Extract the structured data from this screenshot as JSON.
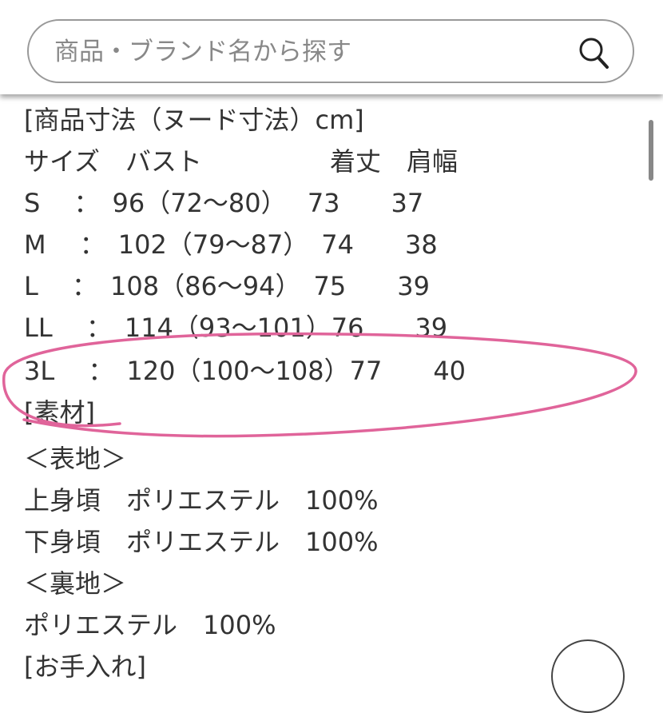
{
  "search": {
    "placeholder": "商品・ブランド名から探す",
    "icon": "search-icon"
  },
  "content": {
    "lines": [
      "[商品寸法（ヌード寸法）cm]",
      "サイズ　バスト　　　　　着丈　肩幅",
      "S　 ：　96（72〜80）　 73　　37",
      "M　 ：　102（79〜87）　74　　38",
      "L　 ：　108（86〜94）　75　　39",
      "LL　 ：　114（93〜101）76　　39",
      "3L　 ：　120（100〜108）77　　40",
      "[素材]",
      "＜表地＞",
      "上身頃　ポリエステル　100%",
      "下身頃　ポリエステル　100%",
      "＜裏地＞",
      "ポリエステル　100%",
      "[お手入れ]"
    ]
  },
  "annotation": {
    "color": "#e0649a"
  },
  "accent_color": "#f07a6a"
}
